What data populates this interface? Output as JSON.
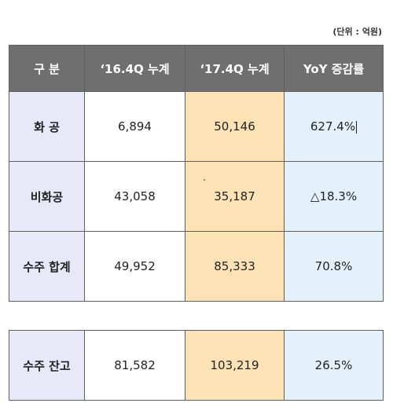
{
  "unit_note": "(단위 : 억원)",
  "headers": [
    "구  분",
    "‘16.4Q 누계",
    "‘17.4Q 누계",
    "YoY 증감률"
  ],
  "rows": [
    {
      "label": "화  공",
      "q16": "6,894",
      "q17": "50,146",
      "yoy": "627.4%"
    },
    {
      "label": "비화공",
      "q16": "43,058",
      "q17": "35,187",
      "yoy": "△18.3%"
    },
    {
      "label": "수주 합계",
      "q16": "49,952",
      "q17": "85,333",
      "yoy": "70.8%"
    }
  ],
  "backlog": {
    "label": "수주 잔고",
    "q16": "81,582",
    "q17": "103,219",
    "yoy": "26.5%"
  }
}
